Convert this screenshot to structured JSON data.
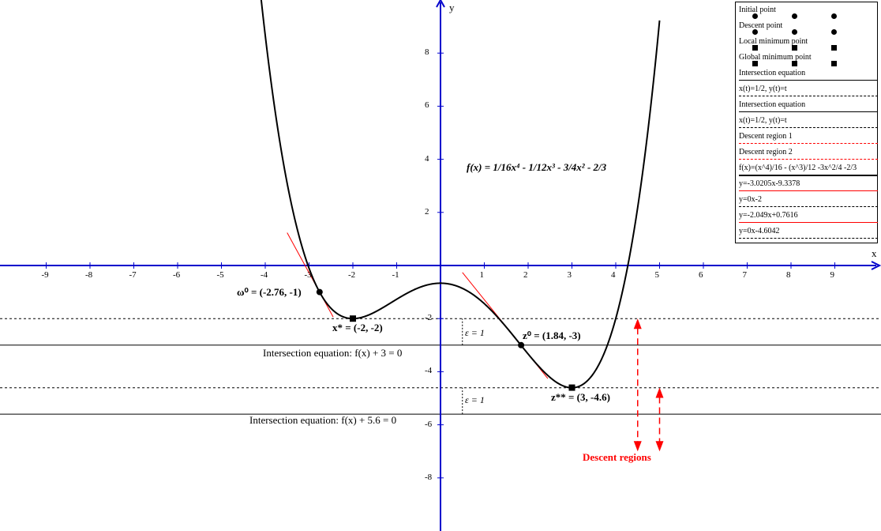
{
  "axes": {
    "x_label": "x",
    "y_label": "y",
    "x_ticks": [
      "-9",
      "-8",
      "-7",
      "-6",
      "-5",
      "-4",
      "-3",
      "-2",
      "-1",
      "1",
      "2",
      "3",
      "4",
      "5",
      "6",
      "7",
      "8",
      "9"
    ],
    "y_ticks": [
      "8",
      "6",
      "4",
      "2",
      "-2",
      "-4",
      "-6",
      "-8"
    ]
  },
  "annotations": {
    "function_title": "f(x) = 1/16x⁴ - 1/12x³ - 3/4x² - 2/3",
    "omega0": "ω⁰ = (-2.76, -1)",
    "xstar": "x* = (-2, -2)",
    "z0": "z⁰ = (1.84, -3)",
    "zstarstar": "z** = (3, -4.6)",
    "intersection1": "Intersection equation: f(x) + 3 = 0",
    "intersection2": "Intersection equation: f(x) + 5.6 = 0",
    "epsilon1": "ε = 1",
    "epsilon2": "ε = 1",
    "descent_regions": "Descent regions"
  },
  "legend": {
    "initial_point": "Initial point",
    "descent_point": "Descent point",
    "local_min": "Local minimum point",
    "global_min": "Global minimum point",
    "intersection_eq_1": "Intersection equation",
    "param_1": "x(t)=1/2, y(t)=t",
    "intersection_eq_2": "Intersection equation",
    "param_2": "x(t)=1/2, y(t)=t",
    "descent_region_1": "Descent region 1",
    "descent_region_2": "Descent region 2",
    "function": "f(x)=(x^4)/16 - (x^3)/12 -3x^2/4 -2/3",
    "tangent_1": "y=-3.0205x-9.3378",
    "line_y_m2": "y=0x-2",
    "tangent_2": "y=-2.049x+0.7616",
    "line_y_m46": "y=0x-4.6042"
  },
  "colors": {
    "axis": "#0000cc",
    "curve": "#000000",
    "tangent": "#ff0000",
    "descent": "#ff0000"
  },
  "chart_data": {
    "type": "line",
    "xlim": [
      -10,
      10
    ],
    "ylim": [
      -10,
      10
    ],
    "grid": false,
    "legend_position": "top-right",
    "series": [
      {
        "name": "f(x)=(x^4)/16 - (x^3)/12 -3x^2/4 -2/3",
        "kind": "function",
        "coeffs": {
          "a4": 0.0625,
          "a3": -0.0833333,
          "a2": -0.75,
          "a1": 0,
          "a0": -0.6666667
        },
        "domain": [
          -4.2,
          5.0
        ]
      },
      {
        "name": "y=-3.0205x-9.3378",
        "kind": "line",
        "slope": -3.0205,
        "intercept": -9.3378,
        "domain": [
          -3.5,
          -2.45
        ]
      },
      {
        "name": "y=-2.049x+0.7616",
        "kind": "line",
        "slope": -2.049,
        "intercept": 0.7616,
        "domain": [
          0.5,
          2.45
        ]
      },
      {
        "name": "y=0x-2",
        "kind": "hline",
        "y": -2
      },
      {
        "name": "y=0x-4.6042",
        "kind": "hline",
        "y": -4.6042
      },
      {
        "name": "Intersection equation: f(x) + 3 = 0",
        "kind": "hline",
        "y": -3
      },
      {
        "name": "Intersection equation: f(x) + 5.6 = 0",
        "kind": "hline",
        "y": -5.6
      }
    ],
    "points": [
      {
        "name": "ω⁰",
        "x": -2.76,
        "y": -1,
        "marker": "circle"
      },
      {
        "name": "x*",
        "x": -2,
        "y": -2,
        "marker": "square"
      },
      {
        "name": "z⁰",
        "x": 1.84,
        "y": -3,
        "marker": "circle"
      },
      {
        "name": "z**",
        "x": 3,
        "y": -4.6,
        "marker": "square"
      }
    ],
    "epsilon_segments": [
      {
        "x": 0.5,
        "y_from": -3,
        "y_to": -2,
        "label": "ε = 1"
      },
      {
        "x": 0.5,
        "y_from": -5.6,
        "y_to": -4.6,
        "label": "ε = 1"
      }
    ],
    "descent_arrows": [
      {
        "x": 4.5,
        "y_from": -2,
        "y_to": -7
      },
      {
        "x": 5.0,
        "y_from": -4.6,
        "y_to": -7
      }
    ]
  }
}
